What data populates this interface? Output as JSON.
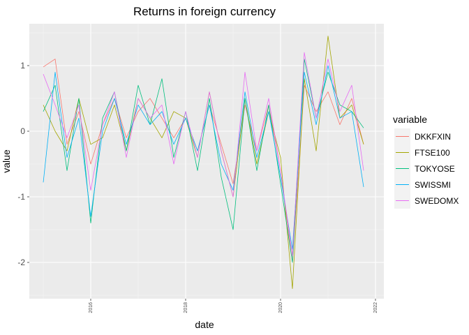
{
  "chart_data": {
    "type": "line",
    "title": "Returns in foreign currency",
    "xlabel": "date",
    "ylabel": "value",
    "xlim": [
      "2015-01",
      "2022-01"
    ],
    "ylim": [
      -2.6,
      1.6
    ],
    "x_ticks": [
      "2016",
      "2018",
      "2020",
      "2022"
    ],
    "y_ticks": [
      "1",
      "0",
      "-1",
      "-2"
    ],
    "grid": true,
    "legend_position": "right",
    "legend_title": "variable",
    "x": [
      "2015-01",
      "2015-04",
      "2015-07",
      "2015-10",
      "2016-01",
      "2016-04",
      "2016-07",
      "2016-10",
      "2017-01",
      "2017-04",
      "2017-07",
      "2017-10",
      "2018-01",
      "2018-04",
      "2018-07",
      "2018-10",
      "2019-01",
      "2019-04",
      "2019-07",
      "2019-10",
      "2020-01",
      "2020-04",
      "2020-07",
      "2020-10",
      "2021-01",
      "2021-04",
      "2021-07",
      "2021-10"
    ],
    "series": [
      {
        "name": "DKKFXIN",
        "color": "#F8766D",
        "values": [
          0.98,
          1.1,
          -0.2,
          0.3,
          -0.5,
          0.1,
          0.5,
          -0.1,
          0.3,
          0.5,
          0.2,
          -0.1,
          0.2,
          -0.3,
          0.4,
          -0.2,
          -0.8,
          0.4,
          -0.3,
          0.4,
          -0.6,
          -2.0,
          0.7,
          0.3,
          0.6,
          0.1,
          0.5,
          -0.2
        ]
      },
      {
        "name": "FTSE100",
        "color": "#A3A500",
        "values": [
          0.4,
          0.0,
          -0.3,
          0.5,
          -0.2,
          -0.1,
          0.4,
          -0.3,
          0.5,
          0.2,
          -0.1,
          0.3,
          0.2,
          -0.4,
          0.6,
          -0.3,
          -1.0,
          0.5,
          -0.5,
          0.3,
          -0.4,
          -2.4,
          0.8,
          -0.3,
          1.45,
          0.2,
          0.4,
          -0.2
        ]
      },
      {
        "name": "TOKYOSE",
        "color": "#00BF7D",
        "values": [
          0.3,
          0.7,
          -0.6,
          0.5,
          -1.4,
          0.2,
          0.6,
          -0.3,
          0.7,
          0.1,
          0.8,
          -0.4,
          0.3,
          -0.6,
          0.5,
          -0.7,
          -1.5,
          0.5,
          -0.6,
          0.4,
          -0.8,
          -2.0,
          1.1,
          0.2,
          0.9,
          0.4,
          0.3,
          0.05
        ]
      },
      {
        "name": "SWISSMI",
        "color": "#00B0F6",
        "values": [
          -0.78,
          0.9,
          -0.4,
          0.2,
          -1.3,
          0.0,
          0.5,
          -0.2,
          0.4,
          0.1,
          0.3,
          -0.2,
          0.2,
          -0.3,
          0.4,
          -0.5,
          -0.9,
          0.6,
          -0.4,
          0.3,
          -0.7,
          -1.8,
          0.9,
          0.1,
          1.0,
          0.2,
          0.3,
          -0.85
        ]
      },
      {
        "name": "SWEDOMX",
        "color": "#E76BF3",
        "values": [
          0.87,
          0.4,
          -0.1,
          0.4,
          -0.9,
          0.1,
          0.6,
          -0.4,
          0.5,
          0.2,
          0.4,
          -0.5,
          0.3,
          -0.4,
          0.6,
          -0.3,
          -1.0,
          0.9,
          -0.3,
          0.5,
          -0.6,
          -1.9,
          1.2,
          0.2,
          1.1,
          0.3,
          0.7,
          -0.6
        ]
      }
    ]
  }
}
